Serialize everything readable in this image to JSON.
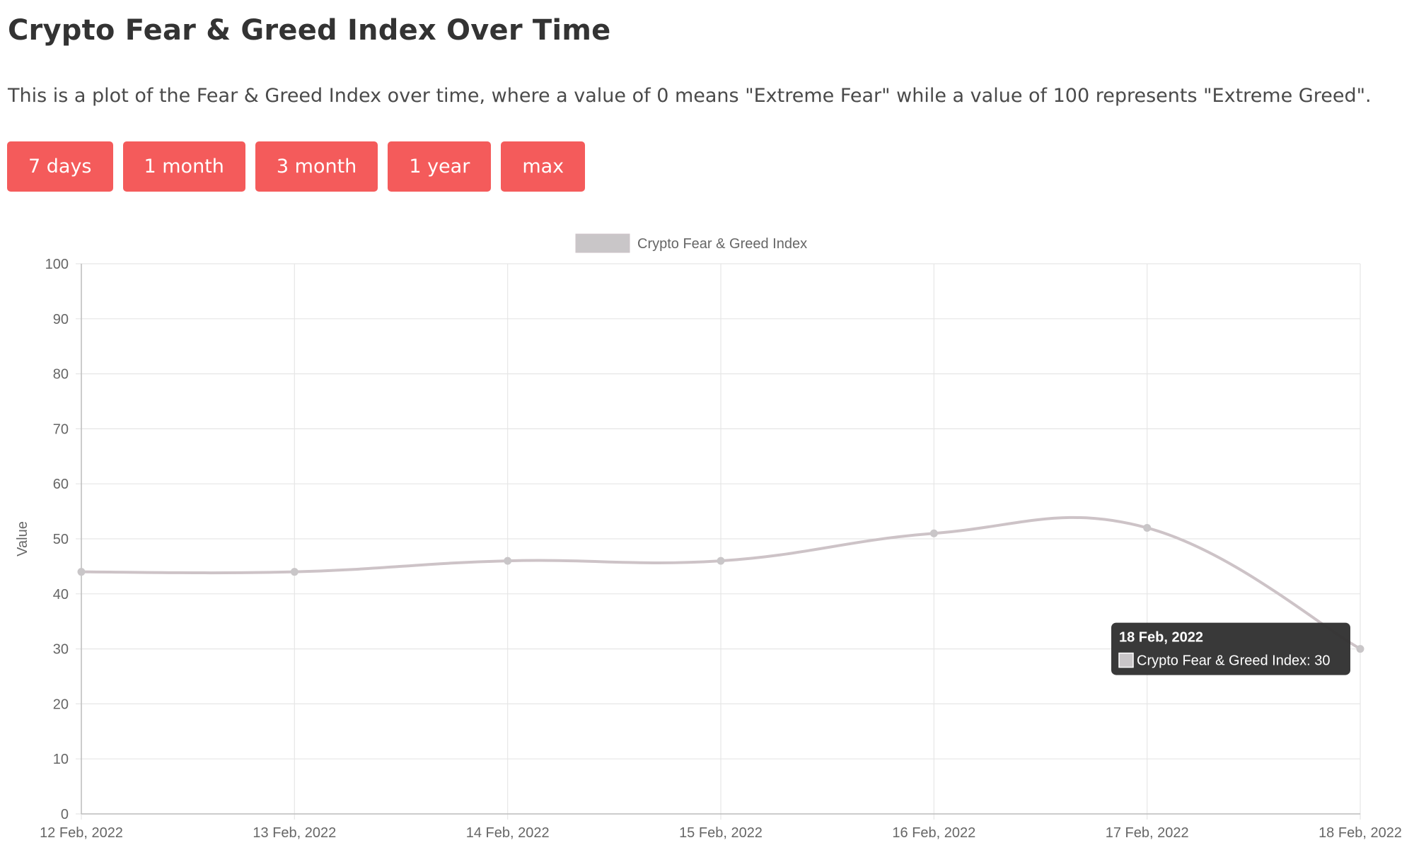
{
  "page": {
    "title": "Crypto Fear & Greed Index Over Time",
    "description": "This is a plot of the Fear & Greed Index over time, where a value of 0 means \"Extreme Fear\" while a value of 100 represents \"Extreme Greed\"."
  },
  "range_buttons": [
    {
      "label": "7 days"
    },
    {
      "label": "1 month"
    },
    {
      "label": "3 month"
    },
    {
      "label": "1 year"
    },
    {
      "label": "max"
    }
  ],
  "colors": {
    "button": "#f45b5b",
    "series_line": "#cdc3c7",
    "point": "#c9c6c8",
    "grid": "#e6e6e6",
    "tooltip_bg": "#333333"
  },
  "chart_data": {
    "type": "line",
    "ylabel": "Value",
    "ylim": [
      0,
      100
    ],
    "yticks": [
      0,
      10,
      20,
      30,
      40,
      50,
      60,
      70,
      80,
      90,
      100
    ],
    "grid": true,
    "legend_position": "top-center",
    "categories": [
      "12 Feb, 2022",
      "13 Feb, 2022",
      "14 Feb, 2022",
      "15 Feb, 2022",
      "16 Feb, 2022",
      "17 Feb, 2022",
      "18 Feb, 2022"
    ],
    "series": [
      {
        "name": "Crypto Fear & Greed Index",
        "values": [
          44,
          44,
          46,
          46,
          51,
          52,
          30
        ]
      }
    ],
    "tooltip": {
      "title": "18 Feb, 2022",
      "body": "Crypto Fear & Greed Index: 30"
    }
  }
}
